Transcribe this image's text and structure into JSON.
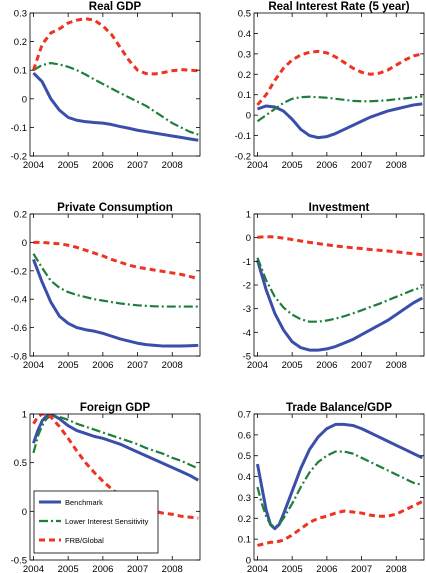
{
  "chart_data": [
    {
      "type": "line",
      "title": "Real GDP",
      "xlim": [
        2003.9,
        2008.8
      ],
      "ylim": [
        -0.2,
        0.3
      ],
      "xticks": [
        2004,
        2005,
        2006,
        2007,
        2008
      ],
      "yticks": [
        -0.2,
        -0.1,
        0,
        0.1,
        0.2,
        0.3
      ],
      "series": [
        {
          "name": "Benchmark",
          "x": [
            2004,
            2004.25,
            2004.5,
            2004.75,
            2005,
            2005.25,
            2005.5,
            2005.75,
            2006,
            2006.25,
            2006.5,
            2006.75,
            2007,
            2007.25,
            2007.5,
            2007.75,
            2008,
            2008.25,
            2008.5,
            2008.75
          ],
          "y": [
            0.09,
            0.06,
            0.0,
            -0.04,
            -0.065,
            -0.075,
            -0.08,
            -0.083,
            -0.085,
            -0.09,
            -0.097,
            -0.103,
            -0.11,
            -0.115,
            -0.12,
            -0.125,
            -0.13,
            -0.135,
            -0.14,
            -0.145
          ]
        },
        {
          "name": "Lower Interest Sensitivity",
          "x": [
            2004,
            2004.25,
            2004.5,
            2004.75,
            2005,
            2005.25,
            2005.5,
            2005.75,
            2006,
            2006.25,
            2006.5,
            2006.75,
            2007,
            2007.25,
            2007.5,
            2007.75,
            2008,
            2008.25,
            2008.5,
            2008.75
          ],
          "y": [
            0.1,
            0.118,
            0.125,
            0.12,
            0.112,
            0.1,
            0.085,
            0.068,
            0.052,
            0.036,
            0.02,
            0.005,
            -0.01,
            -0.025,
            -0.045,
            -0.065,
            -0.085,
            -0.1,
            -0.115,
            -0.125
          ]
        },
        {
          "name": "FRB/Global",
          "x": [
            2004,
            2004.25,
            2004.5,
            2004.75,
            2005,
            2005.25,
            2005.5,
            2005.75,
            2006,
            2006.25,
            2006.5,
            2006.75,
            2007,
            2007.25,
            2007.5,
            2007.75,
            2008,
            2008.25,
            2008.5,
            2008.75
          ],
          "y": [
            0.1,
            0.19,
            0.23,
            0.245,
            0.265,
            0.275,
            0.28,
            0.275,
            0.255,
            0.225,
            0.18,
            0.135,
            0.1,
            0.088,
            0.087,
            0.092,
            0.098,
            0.102,
            0.1,
            0.098
          ]
        }
      ]
    },
    {
      "type": "line",
      "title": "Real Interest Rate (5 year)",
      "xlim": [
        2003.9,
        2008.8
      ],
      "ylim": [
        -0.2,
        0.5
      ],
      "xticks": [
        2004,
        2005,
        2006,
        2007,
        2008
      ],
      "yticks": [
        -0.2,
        -0.1,
        0,
        0.1,
        0.2,
        0.3,
        0.4,
        0.5
      ],
      "series": [
        {
          "name": "Benchmark",
          "x": [
            2004,
            2004.25,
            2004.5,
            2004.75,
            2005,
            2005.25,
            2005.5,
            2005.75,
            2006,
            2006.25,
            2006.5,
            2006.75,
            2007,
            2007.25,
            2007.5,
            2007.75,
            2008,
            2008.25,
            2008.5,
            2008.75
          ],
          "y": [
            0.03,
            0.045,
            0.04,
            0.02,
            -0.02,
            -0.07,
            -0.1,
            -0.11,
            -0.105,
            -0.09,
            -0.07,
            -0.05,
            -0.03,
            -0.01,
            0.005,
            0.02,
            0.03,
            0.04,
            0.05,
            0.055
          ]
        },
        {
          "name": "Lower Interest Sensitivity",
          "x": [
            2004,
            2004.25,
            2004.5,
            2004.75,
            2005,
            2005.25,
            2005.5,
            2005.75,
            2006,
            2006.25,
            2006.5,
            2006.75,
            2007,
            2007.25,
            2007.5,
            2007.75,
            2008,
            2008.25,
            2008.5,
            2008.75
          ],
          "y": [
            -0.03,
            0.0,
            0.03,
            0.06,
            0.08,
            0.088,
            0.09,
            0.088,
            0.085,
            0.08,
            0.075,
            0.07,
            0.068,
            0.068,
            0.07,
            0.073,
            0.078,
            0.082,
            0.087,
            0.092
          ]
        },
        {
          "name": "FRB/Global",
          "x": [
            2004,
            2004.25,
            2004.5,
            2004.75,
            2005,
            2005.25,
            2005.5,
            2005.75,
            2006,
            2006.25,
            2006.5,
            2006.75,
            2007,
            2007.25,
            2007.5,
            2007.75,
            2008,
            2008.25,
            2008.5,
            2008.75
          ],
          "y": [
            0.05,
            0.1,
            0.17,
            0.23,
            0.27,
            0.295,
            0.308,
            0.312,
            0.305,
            0.285,
            0.258,
            0.23,
            0.21,
            0.2,
            0.205,
            0.22,
            0.245,
            0.27,
            0.29,
            0.3
          ]
        }
      ]
    },
    {
      "type": "line",
      "title": "Private Consumption",
      "xlim": [
        2003.9,
        2008.8
      ],
      "ylim": [
        -0.8,
        0.2
      ],
      "xticks": [
        2004,
        2005,
        2006,
        2007,
        2008
      ],
      "yticks": [
        -0.8,
        -0.6,
        -0.4,
        -0.2,
        0,
        0.2
      ],
      "series": [
        {
          "name": "Benchmark",
          "x": [
            2004,
            2004.25,
            2004.5,
            2004.75,
            2005,
            2005.25,
            2005.5,
            2005.75,
            2006,
            2006.25,
            2006.5,
            2006.75,
            2007,
            2007.25,
            2007.5,
            2007.75,
            2008,
            2008.25,
            2008.5,
            2008.75
          ],
          "y": [
            -0.12,
            -0.28,
            -0.42,
            -0.52,
            -0.57,
            -0.6,
            -0.615,
            -0.625,
            -0.64,
            -0.66,
            -0.68,
            -0.695,
            -0.71,
            -0.72,
            -0.725,
            -0.73,
            -0.73,
            -0.73,
            -0.728,
            -0.725
          ]
        },
        {
          "name": "Lower Interest Sensitivity",
          "x": [
            2004,
            2004.25,
            2004.5,
            2004.75,
            2005,
            2005.25,
            2005.5,
            2005.75,
            2006,
            2006.25,
            2006.5,
            2006.75,
            2007,
            2007.25,
            2007.5,
            2007.75,
            2008,
            2008.25,
            2008.5,
            2008.75
          ],
          "y": [
            -0.08,
            -0.18,
            -0.27,
            -0.32,
            -0.35,
            -0.37,
            -0.385,
            -0.4,
            -0.41,
            -0.42,
            -0.43,
            -0.437,
            -0.443,
            -0.447,
            -0.45,
            -0.452,
            -0.452,
            -0.452,
            -0.452,
            -0.452
          ]
        },
        {
          "name": "FRB/Global",
          "x": [
            2004,
            2004.25,
            2004.5,
            2004.75,
            2005,
            2005.25,
            2005.5,
            2005.75,
            2006,
            2006.25,
            2006.5,
            2006.75,
            2007,
            2007.25,
            2007.5,
            2007.75,
            2008,
            2008.25,
            2008.5,
            2008.75
          ],
          "y": [
            0.0,
            0.0,
            -0.005,
            -0.01,
            -0.02,
            -0.035,
            -0.055,
            -0.075,
            -0.095,
            -0.12,
            -0.14,
            -0.16,
            -0.175,
            -0.185,
            -0.195,
            -0.205,
            -0.215,
            -0.225,
            -0.24,
            -0.255
          ]
        }
      ]
    },
    {
      "type": "line",
      "title": "Investment",
      "xlim": [
        2003.9,
        2008.8
      ],
      "ylim": [
        -5,
        1
      ],
      "xticks": [
        2004,
        2005,
        2006,
        2007,
        2008
      ],
      "yticks": [
        -5,
        -4,
        -3,
        -2,
        -1,
        0,
        1
      ],
      "series": [
        {
          "name": "Benchmark",
          "x": [
            2004,
            2004.25,
            2004.5,
            2004.75,
            2005,
            2005.25,
            2005.5,
            2005.75,
            2006,
            2006.25,
            2006.5,
            2006.75,
            2007,
            2007.25,
            2007.5,
            2007.75,
            2008,
            2008.25,
            2008.5,
            2008.75
          ],
          "y": [
            -0.95,
            -2.2,
            -3.2,
            -3.9,
            -4.4,
            -4.65,
            -4.75,
            -4.75,
            -4.7,
            -4.6,
            -4.45,
            -4.3,
            -4.1,
            -3.9,
            -3.7,
            -3.5,
            -3.25,
            -3.0,
            -2.75,
            -2.55
          ]
        },
        {
          "name": "Lower Interest Sensitivity",
          "x": [
            2004,
            2004.25,
            2004.5,
            2004.75,
            2005,
            2005.25,
            2005.5,
            2005.75,
            2006,
            2006.25,
            2006.5,
            2006.75,
            2007,
            2007.25,
            2007.5,
            2007.75,
            2008,
            2008.25,
            2008.5,
            2008.75
          ],
          "y": [
            -0.85,
            -1.8,
            -2.5,
            -2.95,
            -3.25,
            -3.45,
            -3.55,
            -3.55,
            -3.5,
            -3.42,
            -3.32,
            -3.2,
            -3.07,
            -2.93,
            -2.8,
            -2.65,
            -2.5,
            -2.35,
            -2.2,
            -2.1
          ]
        },
        {
          "name": "FRB/Global",
          "x": [
            2004,
            2004.25,
            2004.5,
            2004.75,
            2005,
            2005.25,
            2005.5,
            2005.75,
            2006,
            2006.25,
            2006.5,
            2006.75,
            2007,
            2007.25,
            2007.5,
            2007.75,
            2008,
            2008.25,
            2008.5,
            2008.75
          ],
          "y": [
            0.02,
            0.04,
            0.03,
            -0.02,
            -0.08,
            -0.14,
            -0.2,
            -0.25,
            -0.3,
            -0.35,
            -0.39,
            -0.43,
            -0.46,
            -0.5,
            -0.53,
            -0.56,
            -0.6,
            -0.64,
            -0.68,
            -0.72
          ]
        }
      ]
    },
    {
      "type": "line",
      "title": "Foreign GDP",
      "xlim": [
        2003.9,
        2008.8
      ],
      "ylim": [
        -0.5,
        1
      ],
      "xticks": [
        2004,
        2005,
        2006,
        2007,
        2008
      ],
      "yticks": [
        -0.5,
        0,
        0.5,
        1
      ],
      "legend": {
        "position": "lower-left",
        "entries": [
          "Benchmark",
          "Lower Interest Sensitivity",
          "FRB/Global"
        ]
      },
      "series": [
        {
          "name": "Benchmark",
          "x": [
            2004,
            2004.125,
            2004.25,
            2004.375,
            2004.5,
            2004.75,
            2005,
            2005.25,
            2005.5,
            2005.75,
            2006,
            2006.25,
            2006.5,
            2006.75,
            2007,
            2007.25,
            2007.5,
            2007.75,
            2008,
            2008.25,
            2008.5,
            2008.75
          ],
          "y": [
            0.7,
            0.83,
            0.93,
            0.98,
            1.0,
            0.95,
            0.88,
            0.83,
            0.8,
            0.77,
            0.75,
            0.72,
            0.69,
            0.65,
            0.61,
            0.57,
            0.53,
            0.49,
            0.45,
            0.41,
            0.37,
            0.32
          ]
        },
        {
          "name": "Lower Interest Sensitivity",
          "x": [
            2004,
            2004.125,
            2004.25,
            2004.375,
            2004.5,
            2004.75,
            2005,
            2005.25,
            2005.5,
            2005.75,
            2006,
            2006.25,
            2006.5,
            2006.75,
            2007,
            2007.25,
            2007.5,
            2007.75,
            2008,
            2008.25,
            2008.5,
            2008.75
          ],
          "y": [
            0.6,
            0.77,
            0.88,
            0.95,
            0.98,
            0.97,
            0.94,
            0.9,
            0.87,
            0.84,
            0.81,
            0.78,
            0.75,
            0.72,
            0.69,
            0.65,
            0.62,
            0.59,
            0.55,
            0.52,
            0.48,
            0.44
          ]
        },
        {
          "name": "FRB/Global",
          "x": [
            2004,
            2004.125,
            2004.25,
            2004.375,
            2004.5,
            2004.75,
            2005,
            2005.25,
            2005.5,
            2005.75,
            2006,
            2006.25,
            2006.5,
            2006.75,
            2007,
            2007.25,
            2007.5,
            2007.75,
            2008,
            2008.25,
            2008.5,
            2008.75
          ],
          "y": [
            0.9,
            0.97,
            1.0,
            1.0,
            0.97,
            0.87,
            0.75,
            0.62,
            0.5,
            0.4,
            0.31,
            0.23,
            0.16,
            0.1,
            0.05,
            0.02,
            0.0,
            -0.02,
            -0.03,
            -0.05,
            -0.06,
            -0.07
          ]
        }
      ]
    },
    {
      "type": "line",
      "title": "Trade Balance/GDP",
      "xlim": [
        2003.9,
        2008.8
      ],
      "ylim": [
        0,
        0.7
      ],
      "xticks": [
        2004,
        2005,
        2006,
        2007,
        2008
      ],
      "yticks": [
        0,
        0.1,
        0.2,
        0.3,
        0.4,
        0.5,
        0.6,
        0.7
      ],
      "series": [
        {
          "name": "Benchmark",
          "x": [
            2004,
            2004.125,
            2004.25,
            2004.375,
            2004.5,
            2004.625,
            2004.75,
            2005,
            2005.25,
            2005.5,
            2005.75,
            2006,
            2006.25,
            2006.5,
            2006.75,
            2007,
            2007.25,
            2007.5,
            2007.75,
            2008,
            2008.25,
            2008.5,
            2008.75
          ],
          "y": [
            0.46,
            0.35,
            0.24,
            0.17,
            0.15,
            0.17,
            0.22,
            0.33,
            0.44,
            0.53,
            0.59,
            0.63,
            0.65,
            0.65,
            0.645,
            0.63,
            0.61,
            0.59,
            0.57,
            0.55,
            0.53,
            0.51,
            0.49
          ]
        },
        {
          "name": "Lower Interest Sensitivity",
          "x": [
            2004,
            2004.125,
            2004.25,
            2004.375,
            2004.5,
            2004.625,
            2004.75,
            2005,
            2005.25,
            2005.5,
            2005.75,
            2006,
            2006.25,
            2006.5,
            2006.75,
            2007,
            2007.25,
            2007.5,
            2007.75,
            2008,
            2008.25,
            2008.5,
            2008.75
          ],
          "y": [
            0.35,
            0.27,
            0.21,
            0.17,
            0.16,
            0.17,
            0.2,
            0.27,
            0.35,
            0.42,
            0.47,
            0.5,
            0.52,
            0.52,
            0.51,
            0.49,
            0.47,
            0.45,
            0.43,
            0.41,
            0.39,
            0.37,
            0.36
          ]
        },
        {
          "name": "FRB/Global",
          "x": [
            2004,
            2004.125,
            2004.25,
            2004.375,
            2004.5,
            2004.625,
            2004.75,
            2005,
            2005.25,
            2005.5,
            2005.75,
            2006,
            2006.25,
            2006.5,
            2006.75,
            2007,
            2007.25,
            2007.5,
            2007.75,
            2008,
            2008.25,
            2008.5,
            2008.75
          ],
          "y": [
            0.07,
            0.075,
            0.08,
            0.085,
            0.085,
            0.09,
            0.095,
            0.12,
            0.15,
            0.18,
            0.2,
            0.21,
            0.225,
            0.235,
            0.23,
            0.225,
            0.215,
            0.21,
            0.21,
            0.22,
            0.24,
            0.26,
            0.28
          ]
        }
      ]
    }
  ],
  "colors": {
    "Benchmark": "#3a4faa",
    "Lower Interest Sensitivity": "#1f7f3a",
    "FRB/Global": "#ee3322"
  }
}
